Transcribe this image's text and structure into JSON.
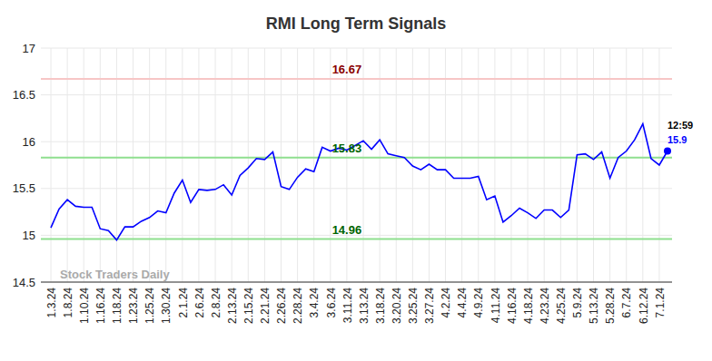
{
  "chart_data": {
    "type": "line",
    "title": "RMI Long Term Signals",
    "watermark": "Stock Traders Daily",
    "color": "#0000ff",
    "grid": true,
    "marker": "none",
    "categories": [
      "1.3.24",
      null,
      "1.8.24",
      null,
      "1.10.24",
      null,
      "1.16.24",
      null,
      "1.18.24",
      null,
      "1.23.24",
      null,
      "1.25.24",
      null,
      "1.30.24",
      null,
      "2.1.24",
      null,
      "2.6.24",
      null,
      "2.8.24",
      null,
      "2.13.24",
      null,
      "2.15.24",
      null,
      "2.21.24",
      null,
      "2.26.24",
      null,
      "2.28.24",
      null,
      "3.4.24",
      null,
      "3.6.24",
      null,
      "3.11.24",
      null,
      "3.13.24",
      null,
      "3.18.24",
      null,
      "3.20.24",
      null,
      "3.25.24",
      null,
      "3.27.24",
      null,
      "4.2.24",
      null,
      "4.4.24",
      null,
      "4.9.24",
      null,
      "4.11.24",
      null,
      "4.16.24",
      null,
      "4.18.24",
      null,
      "4.23.24",
      null,
      "4.25.24",
      null,
      "5.9.24",
      null,
      "5.13.24",
      null,
      "5.28.24",
      null,
      "6.7.24",
      null,
      "6.12.24",
      null,
      "7.1.24",
      null
    ],
    "values": [
      15.08,
      15.28,
      15.38,
      15.31,
      15.3,
      15.3,
      15.07,
      15.05,
      14.95,
      15.09,
      15.09,
      15.15,
      15.19,
      15.26,
      15.24,
      15.45,
      15.59,
      15.35,
      15.49,
      15.48,
      15.49,
      15.54,
      15.43,
      15.64,
      15.72,
      15.82,
      15.81,
      15.89,
      15.52,
      15.49,
      15.62,
      15.71,
      15.68,
      15.94,
      15.9,
      15.93,
      15.91,
      15.96,
      16.01,
      15.92,
      16.02,
      15.87,
      15.85,
      15.83,
      15.74,
      15.7,
      15.76,
      15.7,
      15.7,
      15.61,
      15.61,
      15.61,
      15.63,
      15.38,
      15.42,
      15.14,
      15.21,
      15.29,
      15.24,
      15.18,
      15.27,
      15.27,
      15.19,
      15.27,
      15.86,
      15.87,
      15.81,
      15.89,
      15.61,
      15.83,
      15.9,
      16.02,
      16.19,
      15.82,
      15.75,
      15.9
    ],
    "ylim": [
      14.5,
      17
    ],
    "yticks": [
      14.5,
      15,
      15.5,
      16,
      16.5,
      17
    ],
    "reference_lines": [
      {
        "value": 16.67,
        "label": "16.67",
        "color": "#f7c6c6"
      },
      {
        "value": 15.83,
        "label": "15.83",
        "color": "#8fdf8f"
      },
      {
        "value": 14.96,
        "label": "14.96",
        "color": "#8fdf8f"
      }
    ],
    "annotations": [
      {
        "text": "12:59"
      },
      {
        "text": "15.9"
      }
    ]
  }
}
